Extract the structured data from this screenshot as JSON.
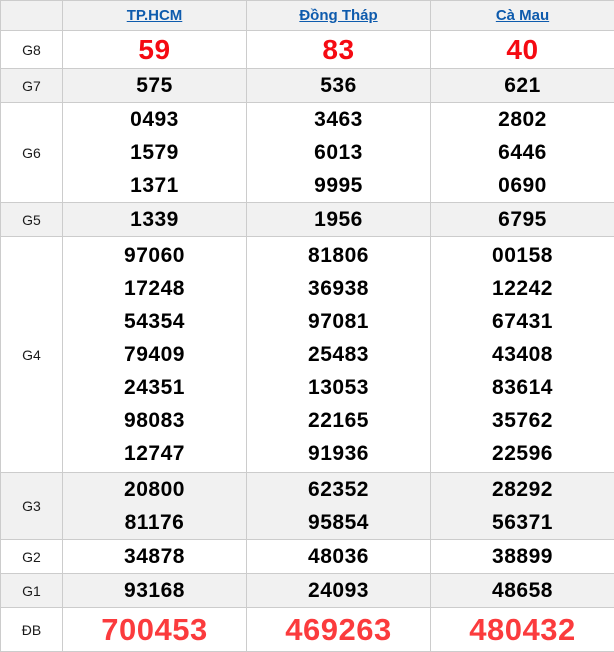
{
  "colors": {
    "g8_red": "#f50a12",
    "db_red": "#fb3b3d",
    "link_blue": "#0e5bad",
    "row_shade": "#f1f1f1",
    "border": "#cccccc"
  },
  "table": {
    "columns": [
      {
        "id": "tphcm",
        "label": "TP.HCM"
      },
      {
        "id": "dong-thap",
        "label": "Đồng Tháp"
      },
      {
        "id": "ca-mau",
        "label": "Cà Mau"
      }
    ],
    "rows": [
      {
        "id": "g8",
        "label": "G8",
        "values": [
          [
            "59"
          ],
          [
            "83"
          ],
          [
            "40"
          ]
        ]
      },
      {
        "id": "g7",
        "label": "G7",
        "values": [
          [
            "575"
          ],
          [
            "536"
          ],
          [
            "621"
          ]
        ]
      },
      {
        "id": "g6",
        "label": "G6",
        "values": [
          [
            "0493",
            "1579",
            "1371"
          ],
          [
            "3463",
            "6013",
            "9995"
          ],
          [
            "2802",
            "6446",
            "0690"
          ]
        ]
      },
      {
        "id": "g5",
        "label": "G5",
        "values": [
          [
            "1339"
          ],
          [
            "1956"
          ],
          [
            "6795"
          ]
        ]
      },
      {
        "id": "g4",
        "label": "G4",
        "values": [
          [
            "97060",
            "17248",
            "54354",
            "79409",
            "24351",
            "98083",
            "12747"
          ],
          [
            "81806",
            "36938",
            "97081",
            "25483",
            "13053",
            "22165",
            "91936"
          ],
          [
            "00158",
            "12242",
            "67431",
            "43408",
            "83614",
            "35762",
            "22596"
          ]
        ]
      },
      {
        "id": "g3",
        "label": "G3",
        "values": [
          [
            "20800",
            "81176"
          ],
          [
            "62352",
            "95854"
          ],
          [
            "28292",
            "56371"
          ]
        ]
      },
      {
        "id": "g2",
        "label": "G2",
        "values": [
          [
            "34878"
          ],
          [
            "48036"
          ],
          [
            "38899"
          ]
        ]
      },
      {
        "id": "g1",
        "label": "G1",
        "values": [
          [
            "93168"
          ],
          [
            "24093"
          ],
          [
            "48658"
          ]
        ]
      },
      {
        "id": "db",
        "label": "ĐB",
        "values": [
          [
            "700453"
          ],
          [
            "469263"
          ],
          [
            "480432"
          ]
        ]
      }
    ]
  }
}
